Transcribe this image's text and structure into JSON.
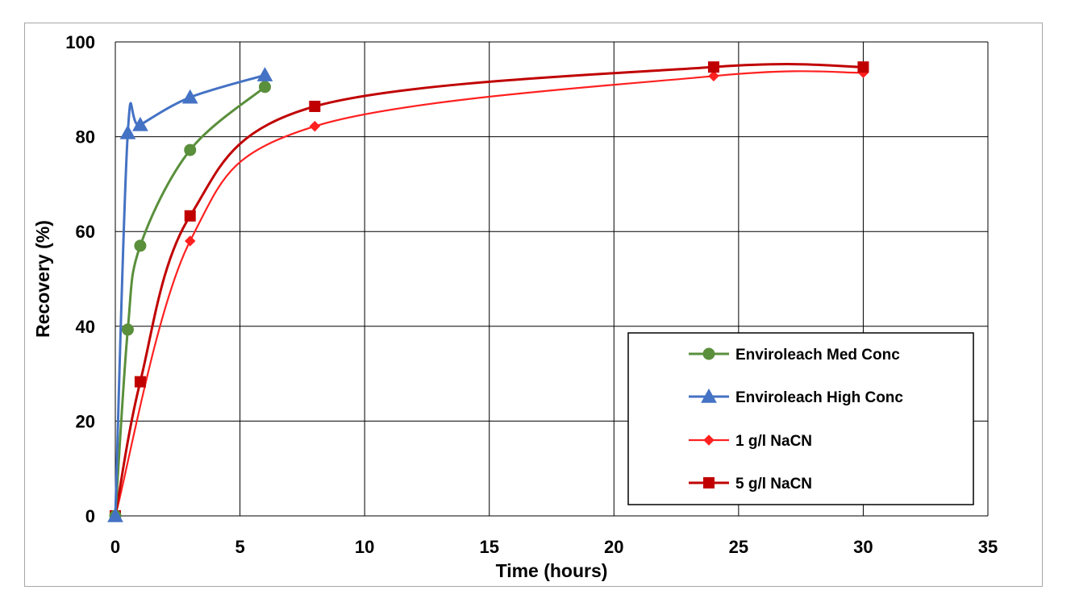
{
  "chart_data": {
    "type": "line",
    "title": "",
    "xlabel": "Time (hours)",
    "ylabel": "Recovery (%)",
    "xlim": [
      0,
      35
    ],
    "ylim": [
      0,
      100
    ],
    "xticks": [
      0,
      5,
      10,
      15,
      20,
      25,
      30,
      35
    ],
    "yticks": [
      0,
      20,
      40,
      60,
      80,
      100
    ],
    "grid": true,
    "smooth": true,
    "legend_position": "bottom-right",
    "series": [
      {
        "name": "Enviroleach Med Conc",
        "color": "#5a8f3c",
        "marker": "circle",
        "x": [
          0,
          0.5,
          1,
          3,
          6
        ],
        "y": [
          0,
          39.3,
          57,
          77.2,
          90.5
        ]
      },
      {
        "name": "Enviroleach High Conc",
        "color": "#4472c4",
        "marker": "triangle",
        "x": [
          0,
          0.5,
          1,
          3,
          6
        ],
        "y": [
          0,
          80.8,
          82.5,
          88.3,
          93
        ]
      },
      {
        "name": "1 g/l NaCN",
        "color": "#ff2020",
        "marker": "diamond",
        "x": [
          0,
          3,
          8,
          24,
          30
        ],
        "y": [
          0,
          58,
          82.2,
          92.8,
          93.5
        ]
      },
      {
        "name": "5 g/l NaCN",
        "color": "#c00000",
        "marker": "square",
        "x": [
          0,
          1,
          3,
          8,
          24,
          30
        ],
        "y": [
          0,
          28.3,
          63.3,
          86.4,
          94.7,
          94.7
        ]
      }
    ]
  }
}
